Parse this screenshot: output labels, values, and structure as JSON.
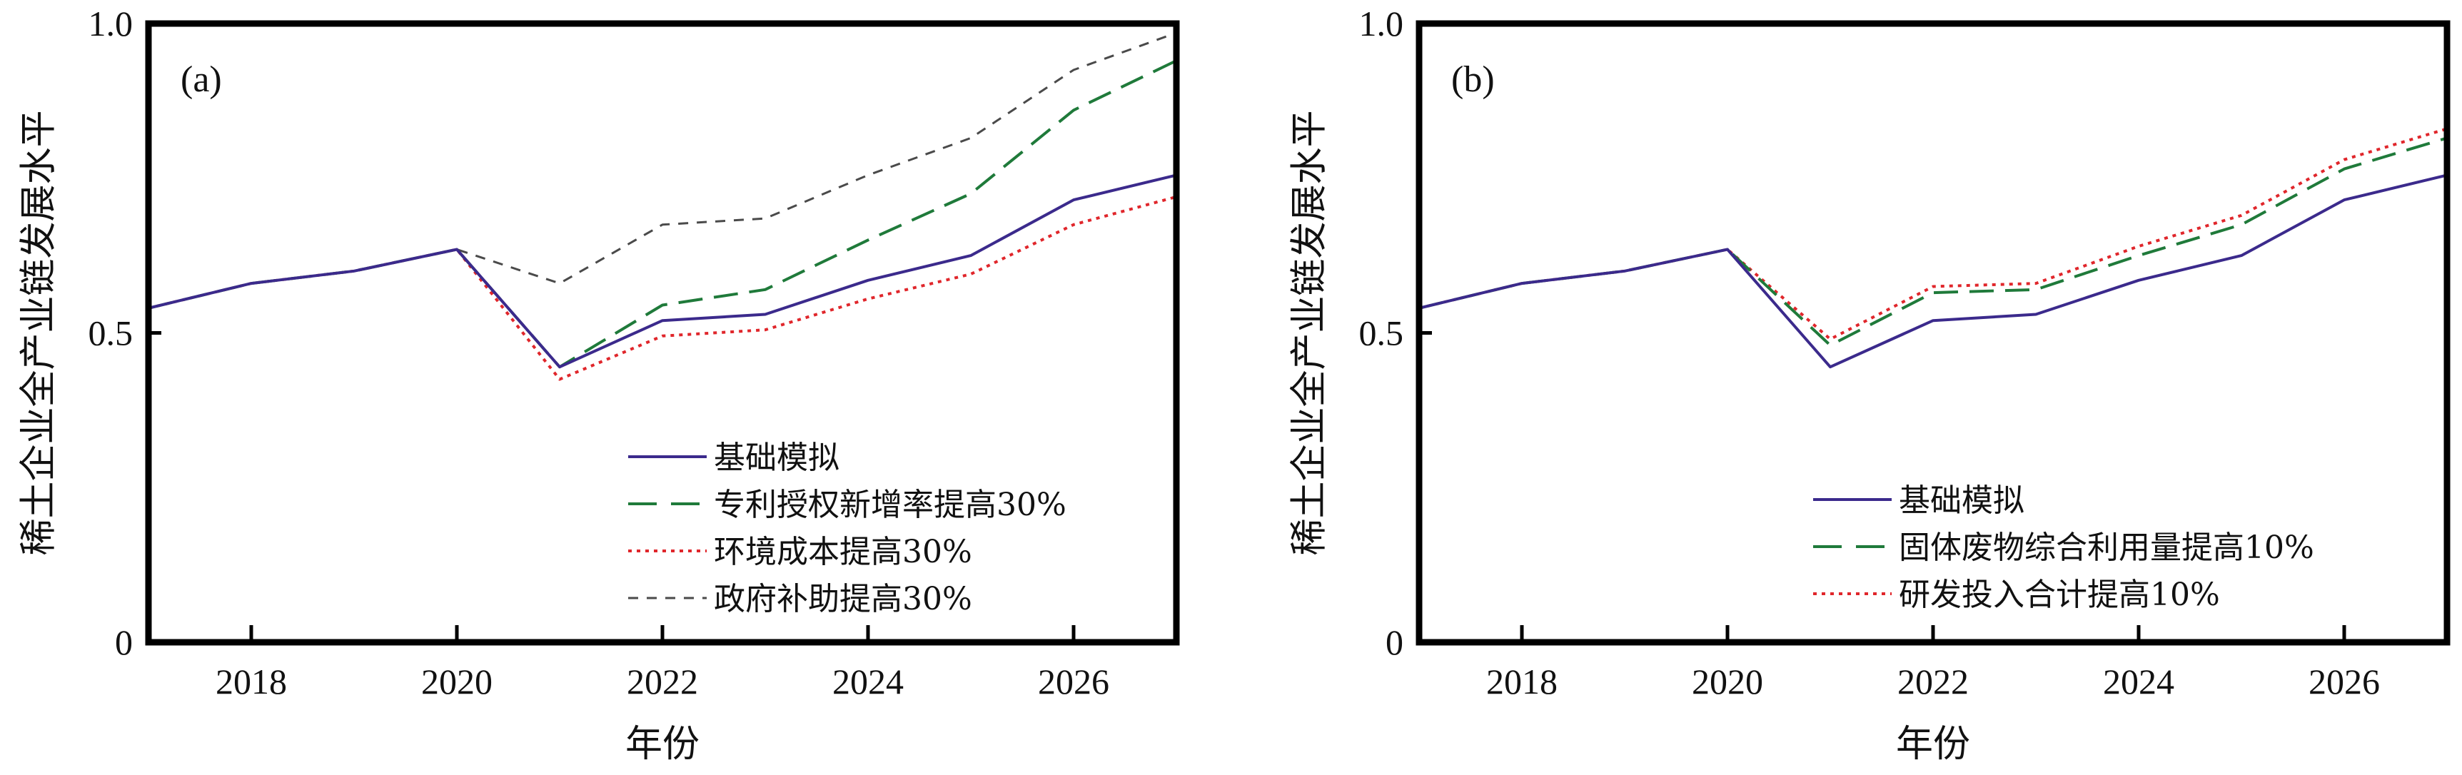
{
  "chart_data": [
    {
      "type": "line",
      "panel_label": "(a)",
      "xlabel": "年份",
      "ylabel": "稀土企业全产业链发展水平",
      "xlim": [
        2017,
        2027
      ],
      "ylim": [
        0,
        1.0
      ],
      "xticks": [
        2018,
        2020,
        2022,
        2024,
        2026
      ],
      "yticks": [
        0,
        0.5,
        1.0
      ],
      "ytick_labels": [
        "0",
        "0.5",
        "1.0"
      ],
      "legend_position": "bottom-right",
      "x": [
        2017,
        2018,
        2019,
        2020,
        2021,
        2022,
        2023,
        2024,
        2025,
        2026,
        2027
      ],
      "series": [
        {
          "name": "基础模拟",
          "style": "solid",
          "color": "#3b2a8c",
          "values": [
            0.54,
            0.58,
            0.6,
            0.635,
            0.445,
            0.52,
            0.53,
            0.585,
            0.625,
            0.715,
            0.755
          ]
        },
        {
          "name": "专利授权新增率提高30%",
          "style": "dashed",
          "color": "#1f7a3a",
          "values": [
            0.54,
            0.58,
            0.6,
            0.635,
            0.445,
            0.545,
            0.57,
            0.65,
            0.725,
            0.86,
            0.94
          ]
        },
        {
          "name": "环境成本提高30%",
          "style": "dotted",
          "color": "#e0262b",
          "values": [
            0.54,
            0.58,
            0.6,
            0.635,
            0.425,
            0.495,
            0.505,
            0.555,
            0.595,
            0.675,
            0.72
          ]
        },
        {
          "name": "政府补助提高30%",
          "style": "short-dashed",
          "color": "#4a4a4a",
          "values": [
            0.54,
            0.58,
            0.6,
            0.635,
            0.58,
            0.675,
            0.685,
            0.755,
            0.815,
            0.925,
            0.985
          ]
        }
      ]
    },
    {
      "type": "line",
      "panel_label": "(b)",
      "xlabel": "年份",
      "ylabel": "稀土企业全产业链发展水平",
      "xlim": [
        2017,
        2027
      ],
      "ylim": [
        0,
        1.0
      ],
      "xticks": [
        2018,
        2020,
        2022,
        2024,
        2026
      ],
      "yticks": [
        0,
        0.5,
        1.0
      ],
      "ytick_labels": [
        "0",
        "0.5",
        "1.0"
      ],
      "legend_position": "bottom-right",
      "x": [
        2017,
        2018,
        2019,
        2020,
        2021,
        2022,
        2023,
        2024,
        2025,
        2026,
        2027
      ],
      "series": [
        {
          "name": "基础模拟",
          "style": "solid",
          "color": "#3b2a8c",
          "values": [
            0.54,
            0.58,
            0.6,
            0.635,
            0.445,
            0.52,
            0.53,
            0.585,
            0.625,
            0.715,
            0.755
          ]
        },
        {
          "name": "固体废物综合利用量提高10%",
          "style": "dashed",
          "color": "#1f7a3a",
          "values": [
            0.54,
            0.58,
            0.6,
            0.635,
            0.48,
            0.565,
            0.57,
            0.625,
            0.675,
            0.765,
            0.815
          ]
        },
        {
          "name": "研发投入合计提高10%",
          "style": "dotted",
          "color": "#e0262b",
          "values": [
            0.54,
            0.58,
            0.6,
            0.635,
            0.49,
            0.575,
            0.58,
            0.64,
            0.69,
            0.78,
            0.83
          ]
        }
      ]
    }
  ]
}
